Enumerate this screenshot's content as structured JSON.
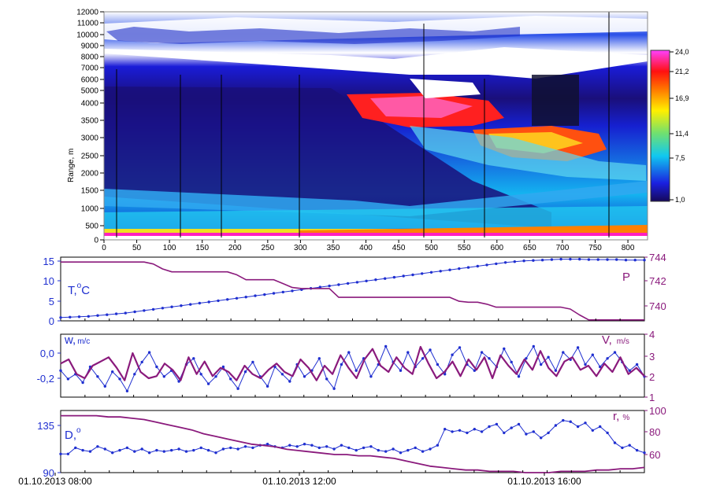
{
  "colors": {
    "blue": "#1f2fd0",
    "purple": "#8a1a7c"
  },
  "heatmap": {
    "ylabel": "Range, m",
    "xticks": [
      "0",
      "50",
      "100",
      "150",
      "200",
      "250",
      "300",
      "350",
      "400",
      "450",
      "500",
      "550",
      "600",
      "650",
      "700",
      "750",
      "800"
    ],
    "yticks": [
      "0",
      "500",
      "1000",
      "1500",
      "2000",
      "2500",
      "3000",
      "3500",
      "4000",
      "5000",
      "6000",
      "7000",
      "8000",
      "9000",
      "10000",
      "11000",
      "12000"
    ],
    "colorbar": [
      "24,0",
      "21,2",
      "16,9",
      "11,4",
      "7,5",
      "1,0"
    ]
  },
  "chart_data": [
    {
      "type": "line",
      "panel": "temperature-pressure",
      "series": [
        {
          "name": "T",
          "axis": "left",
          "values": [
            0.8,
            0.9,
            1.0,
            1.1,
            1.3,
            1.5,
            1.7,
            1.9,
            2.2,
            2.5,
            2.8,
            3.1,
            3.4,
            3.7,
            4.0,
            4.3,
            4.6,
            4.9,
            5.2,
            5.5,
            5.8,
            6.1,
            6.4,
            6.7,
            7.0,
            7.3,
            7.6,
            7.9,
            8.2,
            8.5,
            8.8,
            9.1,
            9.4,
            9.7,
            10.0,
            10.3,
            10.6,
            10.9,
            11.2,
            11.5,
            11.8,
            12.1,
            12.4,
            12.7,
            13.0,
            13.3,
            13.6,
            13.9,
            14.2,
            14.4,
            14.6,
            14.7,
            14.8,
            14.9,
            15.0,
            15.0,
            15.0,
            14.9,
            14.9,
            14.9,
            14.9,
            14.8,
            14.8,
            14.8
          ]
        },
        {
          "name": "P",
          "axis": "right",
          "values": [
            744,
            744,
            744,
            744,
            744,
            744,
            744,
            744,
            744,
            744,
            743.8,
            743.3,
            743.0,
            743.0,
            743.0,
            743.0,
            743.0,
            743.0,
            743.0,
            742.7,
            742.2,
            742.2,
            742.2,
            742.2,
            741.8,
            741.4,
            741.3,
            741.3,
            741.3,
            741.3,
            740.4,
            740.4,
            740.4,
            740.4,
            740.4,
            740.4,
            740.4,
            740.4,
            740.4,
            740.4,
            740.4,
            740.4,
            740.4,
            740.0,
            739.9,
            739.9,
            739.7,
            739.4,
            739.4,
            739.4,
            739.4,
            739.4,
            739.4,
            739.4,
            739.4,
            739.2,
            738.6,
            738.1,
            738.1,
            738.1,
            738.1,
            738.1,
            738.1,
            738.1
          ]
        }
      ],
      "left_axis": {
        "label": "T,",
        "sup": "o",
        "unit": "C",
        "ticks": [
          "15",
          "10",
          "5",
          "0"
        ],
        "range": [
          0,
          15.5
        ]
      },
      "right_axis": {
        "label": "P",
        "ticks": [
          "744",
          "742",
          "740"
        ],
        "range": [
          738,
          744.5
        ]
      }
    },
    {
      "type": "line",
      "panel": "vertical-wind-speed",
      "series": [
        {
          "name": "w",
          "axis": "left",
          "values": [
            -0.15,
            -0.22,
            -0.18,
            -0.25,
            -0.12,
            -0.2,
            -0.28,
            -0.16,
            -0.22,
            -0.32,
            -0.18,
            -0.08,
            0.0,
            -0.12,
            -0.2,
            -0.15,
            -0.24,
            -0.1,
            -0.05,
            -0.18,
            -0.26,
            -0.2,
            -0.12,
            -0.22,
            -0.3,
            -0.16,
            -0.08,
            -0.2,
            -0.28,
            -0.12,
            -0.18,
            -0.24,
            -0.1,
            -0.2,
            -0.15,
            -0.05,
            -0.22,
            -0.3,
            -0.1,
            0.0,
            -0.15,
            -0.05,
            -0.2,
            -0.1,
            0.05,
            -0.08,
            -0.15,
            0.0,
            -0.12,
            -0.05,
            0.02,
            -0.1,
            -0.18,
            -0.02,
            0.04,
            -0.1,
            -0.15,
            0.0,
            -0.05,
            -0.12,
            0.03,
            -0.08,
            -0.2,
            -0.05,
            0.05,
            -0.1,
            -0.04,
            -0.15,
            0.0,
            -0.06,
            0.04,
            -0.1,
            -0.02,
            -0.12,
            -0.05,
            0.0,
            -0.08,
            -0.15,
            -0.1,
            -0.2
          ]
        },
        {
          "name": "V",
          "axis": "right",
          "values": [
            2.6,
            2.8,
            2.1,
            1.9,
            2.5,
            2.7,
            2.9,
            2.4,
            1.8,
            3.1,
            2.2,
            1.9,
            2.0,
            2.6,
            2.3,
            1.8,
            2.9,
            2.1,
            2.7,
            2.0,
            2.4,
            2.2,
            1.8,
            2.5,
            2.1,
            1.9,
            2.3,
            2.6,
            2.2,
            2.0,
            2.8,
            2.4,
            1.8,
            2.5,
            2.1,
            3.0,
            2.4,
            1.9,
            2.8,
            3.3,
            2.5,
            2.2,
            2.9,
            2.4,
            2.1,
            3.4,
            2.6,
            1.9,
            2.2,
            2.7,
            2.0,
            2.8,
            2.3,
            2.9,
            1.9,
            3.0,
            2.5,
            2.1,
            2.8,
            2.3,
            3.2,
            2.4,
            2.0,
            2.7,
            2.9,
            2.3,
            2.5,
            2.0,
            2.6,
            2.2,
            2.9,
            2.1,
            2.4,
            2.0
          ]
        }
      ],
      "left_axis": {
        "label": "w,",
        "unit": "m/c",
        "ticks": [
          "0,0",
          "-0,2"
        ],
        "range": [
          -0.37,
          0.15
        ]
      },
      "right_axis": {
        "label": "V,",
        "unit": "m/s",
        "ticks": [
          "4",
          "3",
          "2",
          "1"
        ],
        "range": [
          1,
          4
        ]
      }
    },
    {
      "type": "line",
      "panel": "direction-humidity",
      "series": [
        {
          "name": "D",
          "axis": "left",
          "values": [
            105,
            105,
            110,
            108,
            107,
            111,
            109,
            106,
            108,
            110,
            107,
            109,
            106,
            108,
            107,
            108,
            109,
            107,
            108,
            110,
            108,
            106,
            109,
            110,
            109,
            111,
            110,
            112,
            113,
            111,
            110,
            112,
            111,
            113,
            112,
            110,
            111,
            109,
            112,
            110,
            108,
            110,
            111,
            108,
            107,
            109,
            106,
            108,
            110,
            107,
            109,
            112,
            125,
            123,
            124,
            122,
            125,
            123,
            127,
            129,
            122,
            126,
            129,
            121,
            123,
            118,
            122,
            128,
            132,
            131,
            127,
            130,
            124,
            127,
            122,
            114,
            110,
            112,
            108,
            106
          ]
        },
        {
          "name": "r",
          "axis": "right",
          "values": [
            96,
            96,
            96,
            96,
            95,
            95,
            94,
            93,
            91,
            89,
            87,
            85,
            82,
            80,
            78,
            76,
            74,
            73,
            72,
            70,
            69,
            68,
            67,
            66,
            66,
            65,
            65,
            64,
            63,
            61,
            59,
            57,
            56,
            55,
            54,
            54,
            53,
            53,
            53,
            52,
            52,
            52,
            53,
            53,
            53,
            54,
            54,
            55,
            55,
            56
          ]
        }
      ],
      "left_axis": {
        "label": "D,",
        "sup": "o",
        "ticks": [
          "135",
          "90"
        ],
        "range": [
          90,
          140
        ]
      },
      "right_axis": {
        "label": "r,",
        "unit": "%",
        "ticks": [
          "100",
          "80",
          "60"
        ],
        "range": [
          52,
          100
        ]
      },
      "xticks": [
        "01.10.2013 08:00",
        "01.10.2013 12:00",
        "01.10.2013 16:00"
      ]
    }
  ]
}
